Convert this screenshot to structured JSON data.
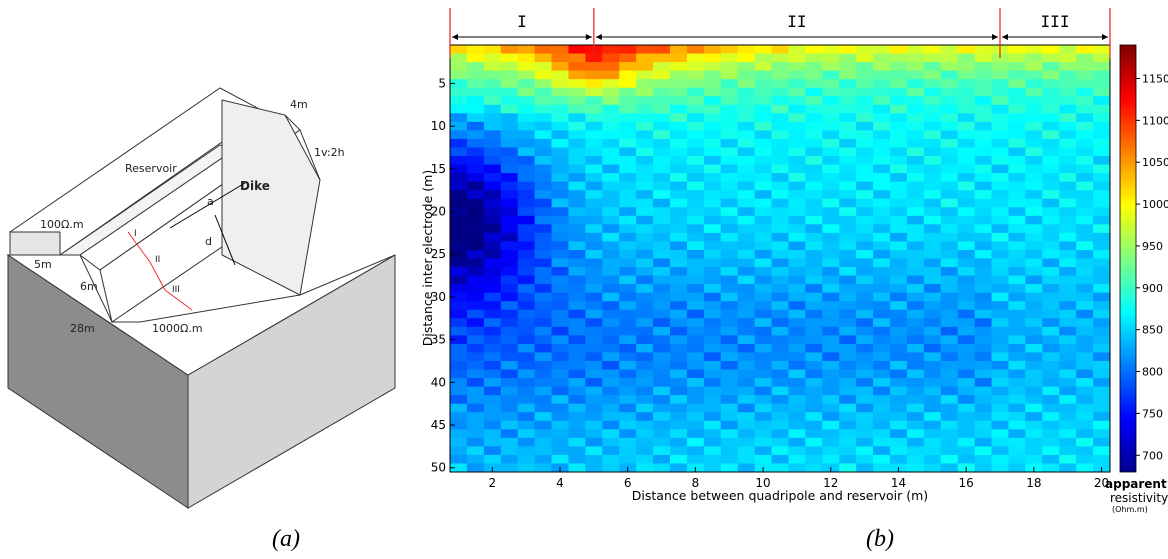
{
  "captions": {
    "a": "(a)",
    "b": "(b)"
  },
  "diagram": {
    "reservoir": "Reservoir",
    "dike": "Dike",
    "res_low": "100Ω.m",
    "res_high": "1000Ω.m",
    "width_top": "4m",
    "slope": "1v:2h",
    "h5": "5m",
    "h6": "6m",
    "base": "28m",
    "a": "a",
    "d": "d",
    "z1": "I",
    "z2": "II",
    "z3": "III"
  },
  "colorbar": {
    "ticks": [
      700,
      750,
      800,
      850,
      900,
      950,
      1000,
      1050,
      1100,
      1150
    ],
    "range": [
      680,
      1190
    ],
    "label1": "apparent",
    "label2": "resistivity",
    "label3": "(Ohm.m)"
  },
  "chart_data": {
    "type": "heatmap",
    "xlabel": "Distance between quadripole and reservoir (m)",
    "ylabel": "Distance inter electrode (m)",
    "xlim": [
      0.75,
      20.25
    ],
    "ylim": [
      50.5,
      0.5
    ],
    "x_ticks": [
      2,
      4,
      6,
      8,
      10,
      12,
      14,
      16,
      18,
      20
    ],
    "y_ticks": [
      5,
      10,
      15,
      20,
      25,
      30,
      35,
      40,
      45,
      50
    ],
    "zones": [
      {
        "label": "I",
        "from": 0.75,
        "to": 5
      },
      {
        "label": "II",
        "from": 5,
        "to": 17
      },
      {
        "label": "III",
        "from": 17,
        "to": 20.25
      }
    ],
    "z_unit": "Ohm.m",
    "z_range": [
      680,
      1190
    ],
    "min_region": {
      "x": 1,
      "y": 20,
      "value": 700
    },
    "max_region": {
      "x": 5,
      "y": 2,
      "value": 1180
    }
  }
}
